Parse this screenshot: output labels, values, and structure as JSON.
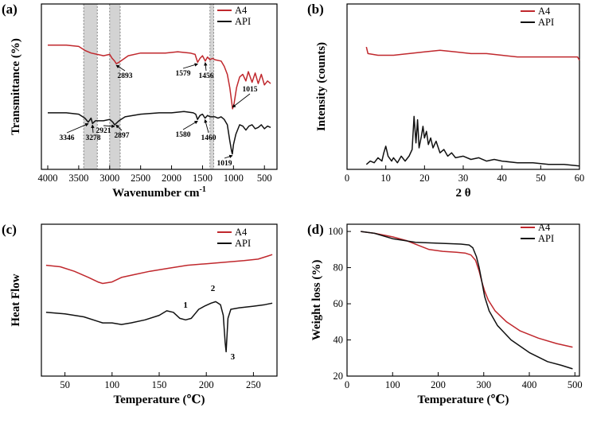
{
  "colors": {
    "a4": "#c0282d",
    "api": "#111111",
    "band": "#d3d3d3"
  },
  "chart_data": [
    {
      "id": "a",
      "type": "line",
      "panel_label": "(a)",
      "xlabel": "Wavenumber cm",
      "xlabel_sup": "-1",
      "ylabel": "Transmittance (%)",
      "xlim": [
        4000,
        400
      ],
      "x_ticks": [
        "4000",
        "3500",
        "3000",
        "2500",
        "2000",
        "1500",
        "1000",
        "500"
      ],
      "y_ticks_shown": false,
      "shaded_bands": [
        [
          3420,
          3200
        ],
        [
          3000,
          2830
        ],
        [
          1380,
          1320
        ]
      ],
      "legend": [
        "A4",
        "API"
      ],
      "series": [
        {
          "name": "A4",
          "color": "#c0282d",
          "points": [
            [
              4000,
              0.84
            ],
            [
              3700,
              0.84
            ],
            [
              3500,
              0.83
            ],
            [
              3400,
              0.8
            ],
            [
              3300,
              0.78
            ],
            [
              3200,
              0.77
            ],
            [
              3100,
              0.76
            ],
            [
              3000,
              0.77
            ],
            [
              2960,
              0.74
            ],
            [
              2920,
              0.72
            ],
            [
              2893,
              0.7
            ],
            [
              2850,
              0.71
            ],
            [
              2700,
              0.76
            ],
            [
              2500,
              0.78
            ],
            [
              2300,
              0.78
            ],
            [
              2100,
              0.78
            ],
            [
              1900,
              0.79
            ],
            [
              1700,
              0.78
            ],
            [
              1620,
              0.77
            ],
            [
              1579,
              0.71
            ],
            [
              1540,
              0.74
            ],
            [
              1500,
              0.76
            ],
            [
              1456,
              0.72
            ],
            [
              1420,
              0.75
            ],
            [
              1380,
              0.73
            ],
            [
              1340,
              0.74
            ],
            [
              1300,
              0.73
            ],
            [
              1200,
              0.72
            ],
            [
              1150,
              0.68
            ],
            [
              1100,
              0.62
            ],
            [
              1060,
              0.52
            ],
            [
              1015,
              0.36
            ],
            [
              990,
              0.4
            ],
            [
              950,
              0.52
            ],
            [
              900,
              0.6
            ],
            [
              850,
              0.62
            ],
            [
              800,
              0.57
            ],
            [
              760,
              0.64
            ],
            [
              700,
              0.56
            ],
            [
              650,
              0.63
            ],
            [
              600,
              0.55
            ],
            [
              550,
              0.62
            ],
            [
              500,
              0.54
            ],
            [
              450,
              0.57
            ],
            [
              400,
              0.55
            ]
          ]
        },
        {
          "name": "API",
          "color": "#111111",
          "points": [
            [
              4000,
              0.33
            ],
            [
              3700,
              0.33
            ],
            [
              3500,
              0.32
            ],
            [
              3400,
              0.29
            ],
            [
              3346,
              0.26
            ],
            [
              3300,
              0.29
            ],
            [
              3278,
              0.25
            ],
            [
              3230,
              0.27
            ],
            [
              3100,
              0.27
            ],
            [
              3000,
              0.28
            ],
            [
              2950,
              0.26
            ],
            [
              2921,
              0.24
            ],
            [
              2897,
              0.25
            ],
            [
              2850,
              0.27
            ],
            [
              2750,
              0.3
            ],
            [
              2500,
              0.32
            ],
            [
              2200,
              0.33
            ],
            [
              2000,
              0.33
            ],
            [
              1800,
              0.34
            ],
            [
              1650,
              0.33
            ],
            [
              1610,
              0.32
            ],
            [
              1580,
              0.28
            ],
            [
              1540,
              0.31
            ],
            [
              1500,
              0.32
            ],
            [
              1460,
              0.29
            ],
            [
              1420,
              0.31
            ],
            [
              1380,
              0.3
            ],
            [
              1300,
              0.3
            ],
            [
              1250,
              0.29
            ],
            [
              1200,
              0.3
            ],
            [
              1150,
              0.28
            ],
            [
              1100,
              0.24
            ],
            [
              1060,
              0.12
            ],
            [
              1030,
              0.04
            ],
            [
              1019,
              0.02
            ],
            [
              1000,
              0.09
            ],
            [
              960,
              0.17
            ],
            [
              900,
              0.24
            ],
            [
              850,
              0.23
            ],
            [
              800,
              0.2
            ],
            [
              750,
              0.23
            ],
            [
              700,
              0.24
            ],
            [
              650,
              0.21
            ],
            [
              600,
              0.22
            ],
            [
              550,
              0.24
            ],
            [
              500,
              0.21
            ],
            [
              450,
              0.23
            ],
            [
              400,
              0.22
            ]
          ]
        }
      ],
      "annotations": [
        "3346",
        "3278",
        "2921",
        "2897",
        "2893",
        "1580",
        "1579",
        "1460",
        "1456",
        "1019",
        "1015"
      ]
    },
    {
      "id": "b",
      "type": "line",
      "panel_label": "(b)",
      "xlabel": "2 θ",
      "ylabel": "Intensity (counts)",
      "xlim": [
        0,
        60
      ],
      "x_ticks": [
        "0",
        "10",
        "20",
        "30",
        "40",
        "50",
        "60"
      ],
      "y_ticks_shown": false,
      "legend": [
        "A4",
        "API"
      ],
      "series": [
        {
          "name": "A4",
          "color": "#c0282d",
          "points": [
            [
              5,
              0.74
            ],
            [
              5.4,
              0.7
            ],
            [
              8,
              0.69
            ],
            [
              12,
              0.69
            ],
            [
              16,
              0.7
            ],
            [
              20,
              0.71
            ],
            [
              24,
              0.72
            ],
            [
              28,
              0.71
            ],
            [
              32,
              0.7
            ],
            [
              36,
              0.7
            ],
            [
              40,
              0.69
            ],
            [
              44,
              0.68
            ],
            [
              48,
              0.68
            ],
            [
              52,
              0.68
            ],
            [
              56,
              0.68
            ],
            [
              59.5,
              0.68
            ],
            [
              60,
              0.66
            ]
          ]
        },
        {
          "name": "API",
          "color": "#111111",
          "points": [
            [
              5,
              0.03
            ],
            [
              6,
              0.05
            ],
            [
              7,
              0.04
            ],
            [
              8,
              0.07
            ],
            [
              9,
              0.05
            ],
            [
              9.5,
              0.1
            ],
            [
              10,
              0.14
            ],
            [
              10.6,
              0.08
            ],
            [
              11.5,
              0.05
            ],
            [
              12,
              0.07
            ],
            [
              13,
              0.04
            ],
            [
              14,
              0.08
            ],
            [
              15,
              0.05
            ],
            [
              16,
              0.08
            ],
            [
              16.8,
              0.12
            ],
            [
              17.3,
              0.32
            ],
            [
              17.8,
              0.16
            ],
            [
              18.2,
              0.3
            ],
            [
              18.6,
              0.13
            ],
            [
              19.2,
              0.2
            ],
            [
              19.6,
              0.26
            ],
            [
              20,
              0.19
            ],
            [
              20.5,
              0.23
            ],
            [
              21,
              0.15
            ],
            [
              21.6,
              0.19
            ],
            [
              22.2,
              0.13
            ],
            [
              23,
              0.17
            ],
            [
              24,
              0.1
            ],
            [
              25,
              0.12
            ],
            [
              26,
              0.08
            ],
            [
              27,
              0.1
            ],
            [
              28,
              0.07
            ],
            [
              30,
              0.08
            ],
            [
              32,
              0.06
            ],
            [
              34,
              0.07
            ],
            [
              36,
              0.05
            ],
            [
              38,
              0.06
            ],
            [
              40,
              0.05
            ],
            [
              44,
              0.04
            ],
            [
              48,
              0.04
            ],
            [
              52,
              0.03
            ],
            [
              56,
              0.03
            ],
            [
              60,
              0.02
            ]
          ]
        }
      ]
    },
    {
      "id": "c",
      "type": "line",
      "panel_label": "(c)",
      "xlabel": "Temperature (℃)",
      "ylabel": "Heat Flow",
      "xlim": [
        25,
        275
      ],
      "x_ticks": [
        50,
        100,
        150,
        200,
        250
      ],
      "y_ticks_shown": false,
      "legend": [
        "A4",
        "API"
      ],
      "series": [
        {
          "name": "A4",
          "color": "#c0282d",
          "points": [
            [
              30,
              0.73
            ],
            [
              45,
              0.72
            ],
            [
              60,
              0.69
            ],
            [
              75,
              0.65
            ],
            [
              85,
              0.62
            ],
            [
              90,
              0.61
            ],
            [
              100,
              0.62
            ],
            [
              110,
              0.65
            ],
            [
              125,
              0.67
            ],
            [
              140,
              0.69
            ],
            [
              160,
              0.71
            ],
            [
              180,
              0.73
            ],
            [
              200,
              0.74
            ],
            [
              220,
              0.75
            ],
            [
              240,
              0.76
            ],
            [
              255,
              0.77
            ],
            [
              265,
              0.79
            ],
            [
              270,
              0.8
            ]
          ]
        },
        {
          "name": "API",
          "color": "#111111",
          "points": [
            [
              30,
              0.42
            ],
            [
              50,
              0.41
            ],
            [
              70,
              0.39
            ],
            [
              85,
              0.36
            ],
            [
              90,
              0.35
            ],
            [
              100,
              0.35
            ],
            [
              110,
              0.34
            ],
            [
              120,
              0.35
            ],
            [
              135,
              0.37
            ],
            [
              150,
              0.4
            ],
            [
              158,
              0.43
            ],
            [
              165,
              0.42
            ],
            [
              172,
              0.38
            ],
            [
              178,
              0.37
            ],
            [
              184,
              0.38
            ],
            [
              188,
              0.41
            ],
            [
              192,
              0.44
            ],
            [
              198,
              0.46
            ],
            [
              205,
              0.48
            ],
            [
              210,
              0.49
            ],
            [
              215,
              0.47
            ],
            [
              218,
              0.4
            ],
            [
              220,
              0.22
            ],
            [
              221,
              0.16
            ],
            [
              223,
              0.38
            ],
            [
              226,
              0.44
            ],
            [
              235,
              0.45
            ],
            [
              250,
              0.46
            ],
            [
              262,
              0.47
            ],
            [
              270,
              0.48
            ]
          ]
        }
      ],
      "peak_labels": [
        {
          "text": "1",
          "x": 178,
          "y": 0.45
        },
        {
          "text": "2",
          "x": 207,
          "y": 0.56
        },
        {
          "text": "3",
          "x": 228,
          "y": 0.11
        }
      ]
    },
    {
      "id": "d",
      "type": "line",
      "panel_label": "(d)",
      "xlabel": "Temperature (℃)",
      "ylabel": "Weight loss (%)",
      "xlim": [
        0,
        510
      ],
      "ylim": [
        20,
        104
      ],
      "x_ticks": [
        0,
        100,
        200,
        300,
        400,
        500
      ],
      "y_ticks": [
        20,
        40,
        60,
        80,
        100
      ],
      "legend": [
        "A4",
        "API"
      ],
      "series": [
        {
          "name": "A4",
          "color": "#c0282d",
          "points": [
            [
              30,
              100
            ],
            [
              60,
              99
            ],
            [
              100,
              97
            ],
            [
              130,
              95
            ],
            [
              160,
              92
            ],
            [
              180,
              90
            ],
            [
              210,
              89
            ],
            [
              240,
              88.5
            ],
            [
              260,
              88
            ],
            [
              272,
              87
            ],
            [
              282,
              84
            ],
            [
              290,
              78
            ],
            [
              296,
              72
            ],
            [
              302,
              67
            ],
            [
              310,
              62
            ],
            [
              325,
              56
            ],
            [
              350,
              50
            ],
            [
              380,
              45
            ],
            [
              420,
              41
            ],
            [
              460,
              38
            ],
            [
              495,
              36
            ]
          ]
        },
        {
          "name": "API",
          "color": "#111111",
          "points": [
            [
              30,
              100
            ],
            [
              60,
              99
            ],
            [
              100,
              96
            ],
            [
              150,
              94
            ],
            [
              200,
              93.5
            ],
            [
              250,
              93
            ],
            [
              268,
              92.5
            ],
            [
              276,
              91
            ],
            [
              284,
              86
            ],
            [
              290,
              80
            ],
            [
              296,
              72
            ],
            [
              302,
              64
            ],
            [
              312,
              56
            ],
            [
              330,
              48
            ],
            [
              360,
              40
            ],
            [
              400,
              33
            ],
            [
              440,
              28
            ],
            [
              470,
              26
            ],
            [
              495,
              24
            ]
          ]
        }
      ]
    }
  ]
}
